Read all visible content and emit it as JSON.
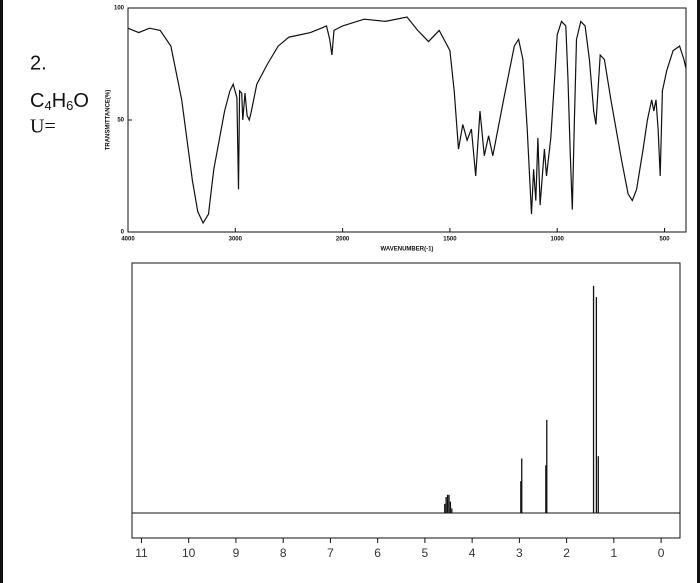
{
  "problem": {
    "number": "2.",
    "formula_parts": [
      "C",
      "4",
      "H",
      "6",
      "O"
    ],
    "unsaturation_label": "U="
  },
  "chart_data": [
    {
      "type": "line",
      "x_label": "WAVENUMBER(-1)",
      "y_label": "TRANSMITTANCE(%)",
      "xlim": [
        4000,
        400
      ],
      "x_scale_break": 2000,
      "ylim": [
        0,
        100
      ],
      "xticks": [
        4000,
        3000,
        2000,
        1500,
        1000,
        500
      ],
      "yticks": [
        0,
        50,
        100
      ],
      "color": "#111",
      "x": [
        4000,
        3900,
        3800,
        3700,
        3600,
        3500,
        3400,
        3350,
        3300,
        3250,
        3200,
        3100,
        3050,
        3020,
        2985,
        2970,
        2960,
        2940,
        2930,
        2910,
        2890,
        2870,
        2850,
        2800,
        2700,
        2600,
        2500,
        2400,
        2300,
        2200,
        2150,
        2120,
        2100,
        2080,
        2000,
        1900,
        1800,
        1700,
        1650,
        1600,
        1550,
        1500,
        1480,
        1460,
        1440,
        1420,
        1400,
        1380,
        1360,
        1340,
        1320,
        1300,
        1250,
        1200,
        1180,
        1160,
        1140,
        1120,
        1110,
        1100,
        1090,
        1080,
        1060,
        1050,
        1030,
        1010,
        1000,
        980,
        960,
        950,
        940,
        930,
        920,
        910,
        890,
        870,
        850,
        830,
        820,
        800,
        780,
        750,
        700,
        670,
        650,
        630,
        600,
        580,
        560,
        550,
        540,
        530,
        520,
        510,
        490,
        460,
        430,
        410,
        400
      ],
      "values": [
        91,
        89,
        91,
        90,
        83,
        59,
        23,
        9,
        4,
        8,
        28,
        54,
        63,
        66,
        60,
        19,
        63,
        62,
        50,
        62,
        52,
        50,
        54,
        66,
        75,
        83,
        87,
        88,
        89,
        91,
        92,
        86,
        79,
        90,
        92,
        95,
        94,
        96,
        90,
        85,
        90,
        81,
        63,
        37,
        48,
        41,
        46,
        25,
        54,
        34,
        43,
        34,
        59,
        83,
        86,
        77,
        46,
        8,
        28,
        14,
        42,
        12,
        37,
        25,
        42,
        72,
        88,
        94,
        92,
        68,
        37,
        10,
        50,
        86,
        94,
        92,
        77,
        54,
        48,
        79,
        77,
        59,
        32,
        17,
        14,
        19,
        37,
        50,
        59,
        54,
        59,
        46,
        25,
        63,
        72,
        81,
        83,
        77,
        73
      ]
    },
    {
      "type": "stick",
      "xlim": [
        11.2,
        -0.4
      ],
      "ylim": [
        -11,
        110
      ],
      "xticks": [
        11,
        10,
        9,
        8,
        7,
        6,
        5,
        4,
        3,
        2,
        1,
        0
      ],
      "color": "#111",
      "x": [
        4.58,
        4.55,
        4.52,
        4.49,
        4.46,
        4.43,
        2.97,
        2.95,
        2.44,
        2.42,
        1.43,
        1.37,
        1.33
      ],
      "values": [
        4,
        7,
        8,
        8,
        5,
        2,
        14,
        24,
        21,
        41,
        100,
        95,
        25
      ]
    }
  ]
}
